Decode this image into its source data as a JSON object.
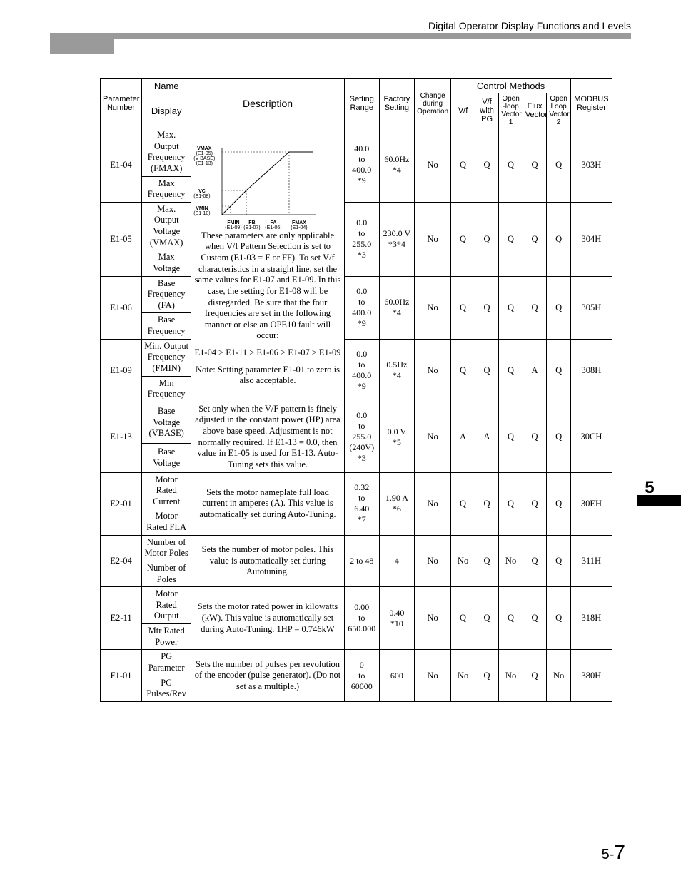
{
  "header": {
    "title": "Digital Operator Display Functions and Levels"
  },
  "side": {
    "chapter": "5"
  },
  "footer": {
    "section": "5-",
    "page": "7"
  },
  "tableHeaders": {
    "paramNumber": "Parameter Number",
    "nameGroup": "Name",
    "display": "Display",
    "description": "Description",
    "settingRange": "Setting Range",
    "factorySetting": "Factory Setting",
    "changeDuringOp": "Change during Operation",
    "controlMethods": "Control Methods",
    "cm1": "V/f",
    "cm2": "V/f with PG",
    "cm3": "Open -loop Vector 1",
    "cm4": "Flux Vector",
    "cm5": "Open Loop Vector 2",
    "modbus": "MODBUS Register"
  },
  "vfGraph": {
    "yLabels": [
      {
        "t": "VMAX",
        "s": "(E1-05)",
        "p": "(V BASE)",
        "pp": "(E1-13)"
      },
      {
        "t": "VC",
        "s": "(E1-08)"
      },
      {
        "t": "VMIN",
        "s": "(E1-10)"
      }
    ],
    "xLabels": [
      {
        "t": "FMIN",
        "s": "(E1-09)"
      },
      {
        "t": "FB",
        "s": "(E1-07)"
      },
      {
        "t": "FA",
        "s": "(E1-06)"
      },
      {
        "t": "FMAX",
        "s": "(E1-04)"
      }
    ]
  },
  "sharedDesc": {
    "body": "These parameters are only applicable when V/f Pattern Selection is set to Custom (E1-03 = F or FF). To set V/f characteristics in a straight line, set the same values for E1-07 and E1-09. In this case, the setting for E1-08 will be disregarded. Be sure that the four frequencies are set in the following manner or else an OPE10 fault will occur:",
    "formula": "E1-04 ≥ E1-11 ≥ E1-06 > E1-07 ≥ E1-09",
    "note": "Note:  Setting parameter E1-01 to zero is also acceptable."
  },
  "rows": [
    {
      "pnum": "E1-04",
      "name1": "Max. Output Frequency (FMAX)",
      "name2": "Max Frequency",
      "range": "40.0\nto\n400.0\n*9",
      "fset": "60.0Hz\n*4",
      "change": "No",
      "cm": [
        "Q",
        "Q",
        "Q",
        "Q",
        "Q"
      ],
      "modbus": "303H"
    },
    {
      "pnum": "E1-05",
      "name1": "Max. Output Voltage (VMAX)",
      "name2": "Max Voltage",
      "range": "0.0\nto\n255.0\n*3",
      "fset": "230.0 V\n*3*4",
      "change": "No",
      "cm": [
        "Q",
        "Q",
        "Q",
        "Q",
        "Q"
      ],
      "modbus": "304H"
    },
    {
      "pnum": "E1-06",
      "name1": "Base Frequency (FA)",
      "name2": "Base Frequency",
      "range": "0.0\nto\n400.0\n*9",
      "fset": "60.0Hz\n*4",
      "change": "No",
      "cm": [
        "Q",
        "Q",
        "Q",
        "Q",
        "Q"
      ],
      "modbus": "305H"
    },
    {
      "pnum": "E1-09",
      "name1": "Min. Output Frequency (FMIN)",
      "name2": "Min Frequency",
      "range": "0.0\nto\n400.0\n*9",
      "fset": "0.5Hz\n*4",
      "change": "No",
      "cm": [
        "Q",
        "Q",
        "Q",
        "A",
        "Q"
      ],
      "modbus": "308H"
    },
    {
      "pnum": "E1-13",
      "name1": "Base Voltage (VBASE)",
      "name2": "Base Voltage",
      "desc": "Set only when the V/F pattern is finely adjusted in the constant power (HP) area above base speed. Adjustment is not normally required. If E1-13 = 0.0, then value in E1-05 is used for E1-13. Auto-Tuning sets this value.",
      "range": "0.0\nto\n255.0\n(240V)\n*3",
      "fset": "0.0 V\n*5",
      "change": "No",
      "cm": [
        "A",
        "A",
        "Q",
        "Q",
        "Q"
      ],
      "modbus": "30CH"
    },
    {
      "pnum": "E2-01",
      "name1": "Motor Rated Current",
      "name2": "Motor Rated FLA",
      "desc": "Sets the motor nameplate full load current in amperes (A). This value is automatically set during Auto-Tuning.",
      "range": "0.32\nto\n6.40\n*7",
      "fset": "1.90 A\n*6",
      "change": "No",
      "cm": [
        "Q",
        "Q",
        "Q",
        "Q",
        "Q"
      ],
      "modbus": "30EH"
    },
    {
      "pnum": "E2-04",
      "name1": "Number of Motor Poles",
      "name2": "Number of Poles",
      "desc": "Sets the number of motor poles. This value is automatically set during Autotuning.",
      "range": "2 to 48",
      "fset": "4",
      "change": "No",
      "cm": [
        "No",
        "Q",
        "No",
        "Q",
        "Q"
      ],
      "modbus": "311H"
    },
    {
      "pnum": "E2-11",
      "name1": "Motor Rated Output",
      "name2": "Mtr Rated Power",
      "desc": "Sets the motor rated power in kilowatts (kW).  This value is automatically set during Auto-Tuning.  1HP = 0.746kW",
      "range": "0.00\nto\n650.000",
      "fset": "0.40\n*10",
      "change": "No",
      "cm": [
        "Q",
        "Q",
        "Q",
        "Q",
        "Q"
      ],
      "modbus": "318H"
    },
    {
      "pnum": "F1-01",
      "name1": "PG Parameter",
      "name2": "PG Pulses/Rev",
      "desc": "Sets the number of pulses per revolution of the encoder (pulse generator). (Do not set as a multiple.)",
      "range": "0\nto\n60000",
      "fset": "600",
      "change": "No",
      "cm": [
        "No",
        "Q",
        "No",
        "Q",
        "No"
      ],
      "modbus": "380H"
    }
  ]
}
